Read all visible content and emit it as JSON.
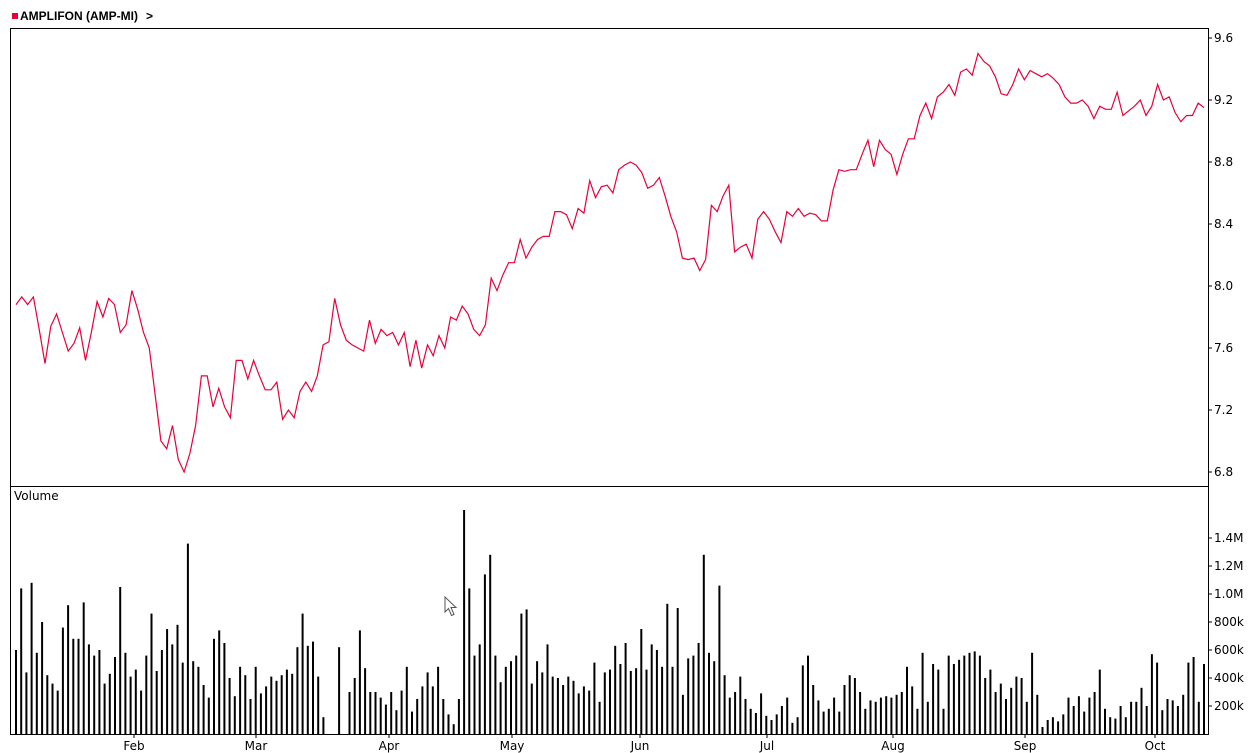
{
  "header": {
    "title": "AMPLIFON (AMP-MI)",
    "nav_glyph": ">",
    "marker_color": "#e8003a"
  },
  "chart_data": [
    {
      "type": "line",
      "title": "AMPLIFON (AMP-MI)",
      "series": [
        {
          "color": "#e8003a",
          "values": [
            7.88,
            7.93,
            7.88,
            7.93,
            7.72,
            7.5,
            7.74,
            7.82,
            7.7,
            7.58,
            7.63,
            7.73,
            7.52,
            7.7,
            7.9,
            7.8,
            7.92,
            7.88,
            7.7,
            7.75,
            7.97,
            7.85,
            7.7,
            7.6,
            7.3,
            7.0,
            6.95,
            7.1,
            6.88,
            6.8,
            6.92,
            7.1,
            7.42,
            7.42,
            7.22,
            7.34,
            7.22,
            7.15,
            7.52,
            7.52,
            7.4,
            7.52,
            7.42,
            7.33,
            7.33,
            7.38,
            7.14,
            7.2,
            7.15,
            7.32,
            7.38,
            7.32,
            7.42,
            7.62,
            7.64,
            7.92,
            7.75,
            7.65,
            7.62,
            7.6,
            7.58,
            7.78,
            7.63,
            7.72,
            7.68,
            7.7,
            7.62,
            7.7,
            7.48,
            7.65,
            7.47,
            7.62,
            7.55,
            7.68,
            7.6,
            7.8,
            7.78,
            7.87,
            7.82,
            7.72,
            7.68,
            7.75,
            8.05,
            7.97,
            8.07,
            8.15,
            8.15,
            8.3,
            8.18,
            8.25,
            8.3,
            8.32,
            8.32,
            8.48,
            8.48,
            8.46,
            8.37,
            8.5,
            8.47,
            8.68,
            8.57,
            8.64,
            8.65,
            8.6,
            8.75,
            8.78,
            8.8,
            8.78,
            8.73,
            8.63,
            8.65,
            8.7,
            8.58,
            8.45,
            8.35,
            8.18,
            8.17,
            8.18,
            8.1,
            8.17,
            8.52,
            8.48,
            8.58,
            8.65,
            8.22,
            8.25,
            8.27,
            8.18,
            8.43,
            8.48,
            8.43,
            8.35,
            8.28,
            8.48,
            8.45,
            8.5,
            8.45,
            8.47,
            8.46,
            8.42,
            8.42,
            8.62,
            8.75,
            8.74,
            8.75,
            8.75,
            8.85,
            8.94,
            8.77,
            8.94,
            8.88,
            8.85,
            8.72,
            8.85,
            8.95,
            8.95,
            9.1,
            9.18,
            9.08,
            9.22,
            9.25,
            9.3,
            9.23,
            9.38,
            9.4,
            9.36,
            9.5,
            9.45,
            9.42,
            9.35,
            9.24,
            9.23,
            9.3,
            9.4,
            9.33,
            9.39,
            9.37,
            9.35,
            9.37,
            9.34,
            9.3,
            9.22,
            9.18,
            9.18,
            9.2,
            9.16,
            9.08,
            9.16,
            9.14,
            9.14,
            9.25,
            9.1,
            9.13,
            9.16,
            9.2,
            9.1,
            9.16,
            9.3,
            9.2,
            9.22,
            9.12,
            9.06,
            9.1,
            9.1,
            9.18,
            9.15
          ]
        }
      ],
      "ylim": [
        6.7,
        9.65
      ],
      "yticks": [
        "6.8",
        "7.2",
        "7.6",
        "8.0",
        "8.4",
        "8.8",
        "9.2",
        "9.6"
      ],
      "grid": false
    },
    {
      "type": "bar",
      "title": "Volume",
      "values": [
        600000,
        1040000,
        440000,
        1080000,
        580000,
        800000,
        420000,
        360000,
        310000,
        760000,
        920000,
        680000,
        680000,
        940000,
        640000,
        560000,
        600000,
        360000,
        430000,
        550000,
        1050000,
        580000,
        410000,
        460000,
        310000,
        560000,
        860000,
        450000,
        600000,
        750000,
        640000,
        780000,
        510000,
        1360000,
        520000,
        480000,
        350000,
        260000,
        680000,
        740000,
        650000,
        400000,
        270000,
        480000,
        420000,
        250000,
        480000,
        290000,
        340000,
        410000,
        380000,
        420000,
        460000,
        430000,
        620000,
        860000,
        630000,
        660000,
        410000,
        120000,
        0,
        0,
        620000,
        0,
        300000,
        400000,
        740000,
        470000,
        300000,
        300000,
        260000,
        210000,
        300000,
        170000,
        310000,
        480000,
        160000,
        250000,
        340000,
        440000,
        340000,
        480000,
        250000,
        140000,
        70000,
        250000,
        1600000,
        1040000,
        560000,
        640000,
        1140000,
        1280000,
        560000,
        370000,
        480000,
        520000,
        560000,
        860000,
        890000,
        360000,
        520000,
        440000,
        640000,
        410000,
        400000,
        350000,
        410000,
        380000,
        290000,
        340000,
        310000,
        510000,
        230000,
        440000,
        460000,
        630000,
        500000,
        650000,
        450000,
        470000,
        750000,
        460000,
        640000,
        600000,
        480000,
        930000,
        480000,
        900000,
        280000,
        540000,
        560000,
        650000,
        1280000,
        580000,
        520000,
        1060000,
        420000,
        260000,
        300000,
        410000,
        250000,
        180000,
        150000,
        290000,
        130000,
        100000,
        140000,
        200000,
        260000,
        80000,
        120000,
        490000,
        560000,
        350000,
        240000,
        160000,
        180000,
        260000,
        160000,
        350000,
        420000,
        400000,
        300000,
        180000,
        240000,
        230000,
        260000,
        270000,
        260000,
        280000,
        300000,
        480000,
        340000,
        180000,
        580000,
        230000,
        500000,
        460000,
        180000,
        560000,
        500000,
        530000,
        560000,
        580000,
        590000,
        560000,
        400000,
        460000,
        300000,
        360000,
        250000,
        330000,
        410000,
        400000,
        230000,
        580000,
        280000,
        50000,
        100000,
        120000,
        90000,
        140000,
        260000,
        200000,
        270000,
        160000,
        260000,
        300000,
        460000,
        180000,
        120000,
        110000,
        200000,
        120000,
        230000,
        230000,
        330000,
        200000,
        570000,
        510000,
        170000,
        250000,
        240000,
        200000,
        280000,
        510000,
        550000,
        230000,
        500000
      ]
    }
  ],
  "price_axis": {
    "ticks": [
      "6.8",
      "7.2",
      "7.6",
      "8.0",
      "8.4",
      "8.8",
      "9.2",
      "9.6"
    ]
  },
  "volume_axis": {
    "label": "Volume",
    "ticks": [
      "200k",
      "400k",
      "600k",
      "800k",
      "1.0M",
      "1.2M",
      "1.4M"
    ],
    "tick_values": [
      200000,
      400000,
      600000,
      800000,
      1000000,
      1200000,
      1400000
    ]
  },
  "x_axis": {
    "months": [
      "Feb",
      "Mar",
      "Apr",
      "May",
      "Jun",
      "Jul",
      "Aug",
      "Sep",
      "Oct"
    ]
  },
  "colors": {
    "price_line": "#e8003a",
    "volume_bar": "#000000"
  }
}
